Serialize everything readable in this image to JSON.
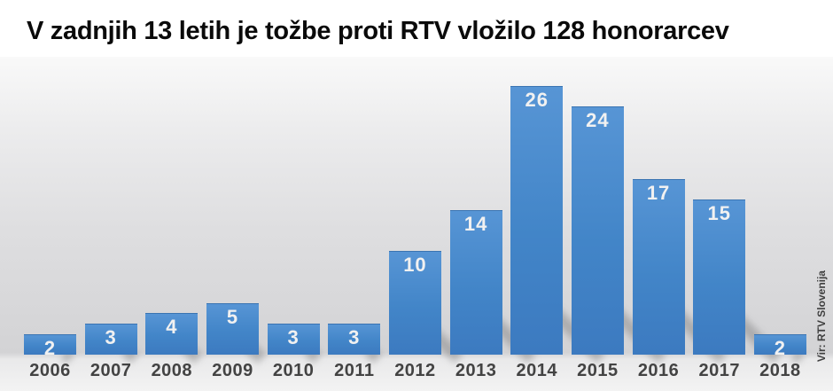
{
  "title": "V zadnjih 13 letih je tožbe proti RTV vložilo 128 honorarcev",
  "source_label": "Vir: RTV Slovenija",
  "chart_data": {
    "type": "bar",
    "title": "V zadnjih 13 letih je tožbe proti RTV vložilo 128 honorarcev",
    "categories": [
      "2006",
      "2007",
      "2008",
      "2009",
      "2010",
      "2011",
      "2012",
      "2013",
      "2014",
      "2015",
      "2016",
      "2017",
      "2018"
    ],
    "values": [
      2,
      3,
      4,
      5,
      3,
      3,
      10,
      14,
      26,
      24,
      17,
      15,
      2
    ],
    "total": 128,
    "xlabel": "",
    "ylabel": "",
    "ylim": [
      0,
      28
    ],
    "grid": false,
    "legend": "none",
    "data_labels": "inside-end",
    "source": "Vir: RTV Slovenija"
  },
  "style": {
    "title_color": "#0a0a0a",
    "bar_color": "#4285c8",
    "bar_gradient_top": "#5795d5",
    "bar_gradient_bottom": "#3c7ac0",
    "bar_border_top": "#3a74b2",
    "value_label_color": "#f1f1f1",
    "year_label_color": "#434343",
    "source_color": "#3f3f3f"
  }
}
